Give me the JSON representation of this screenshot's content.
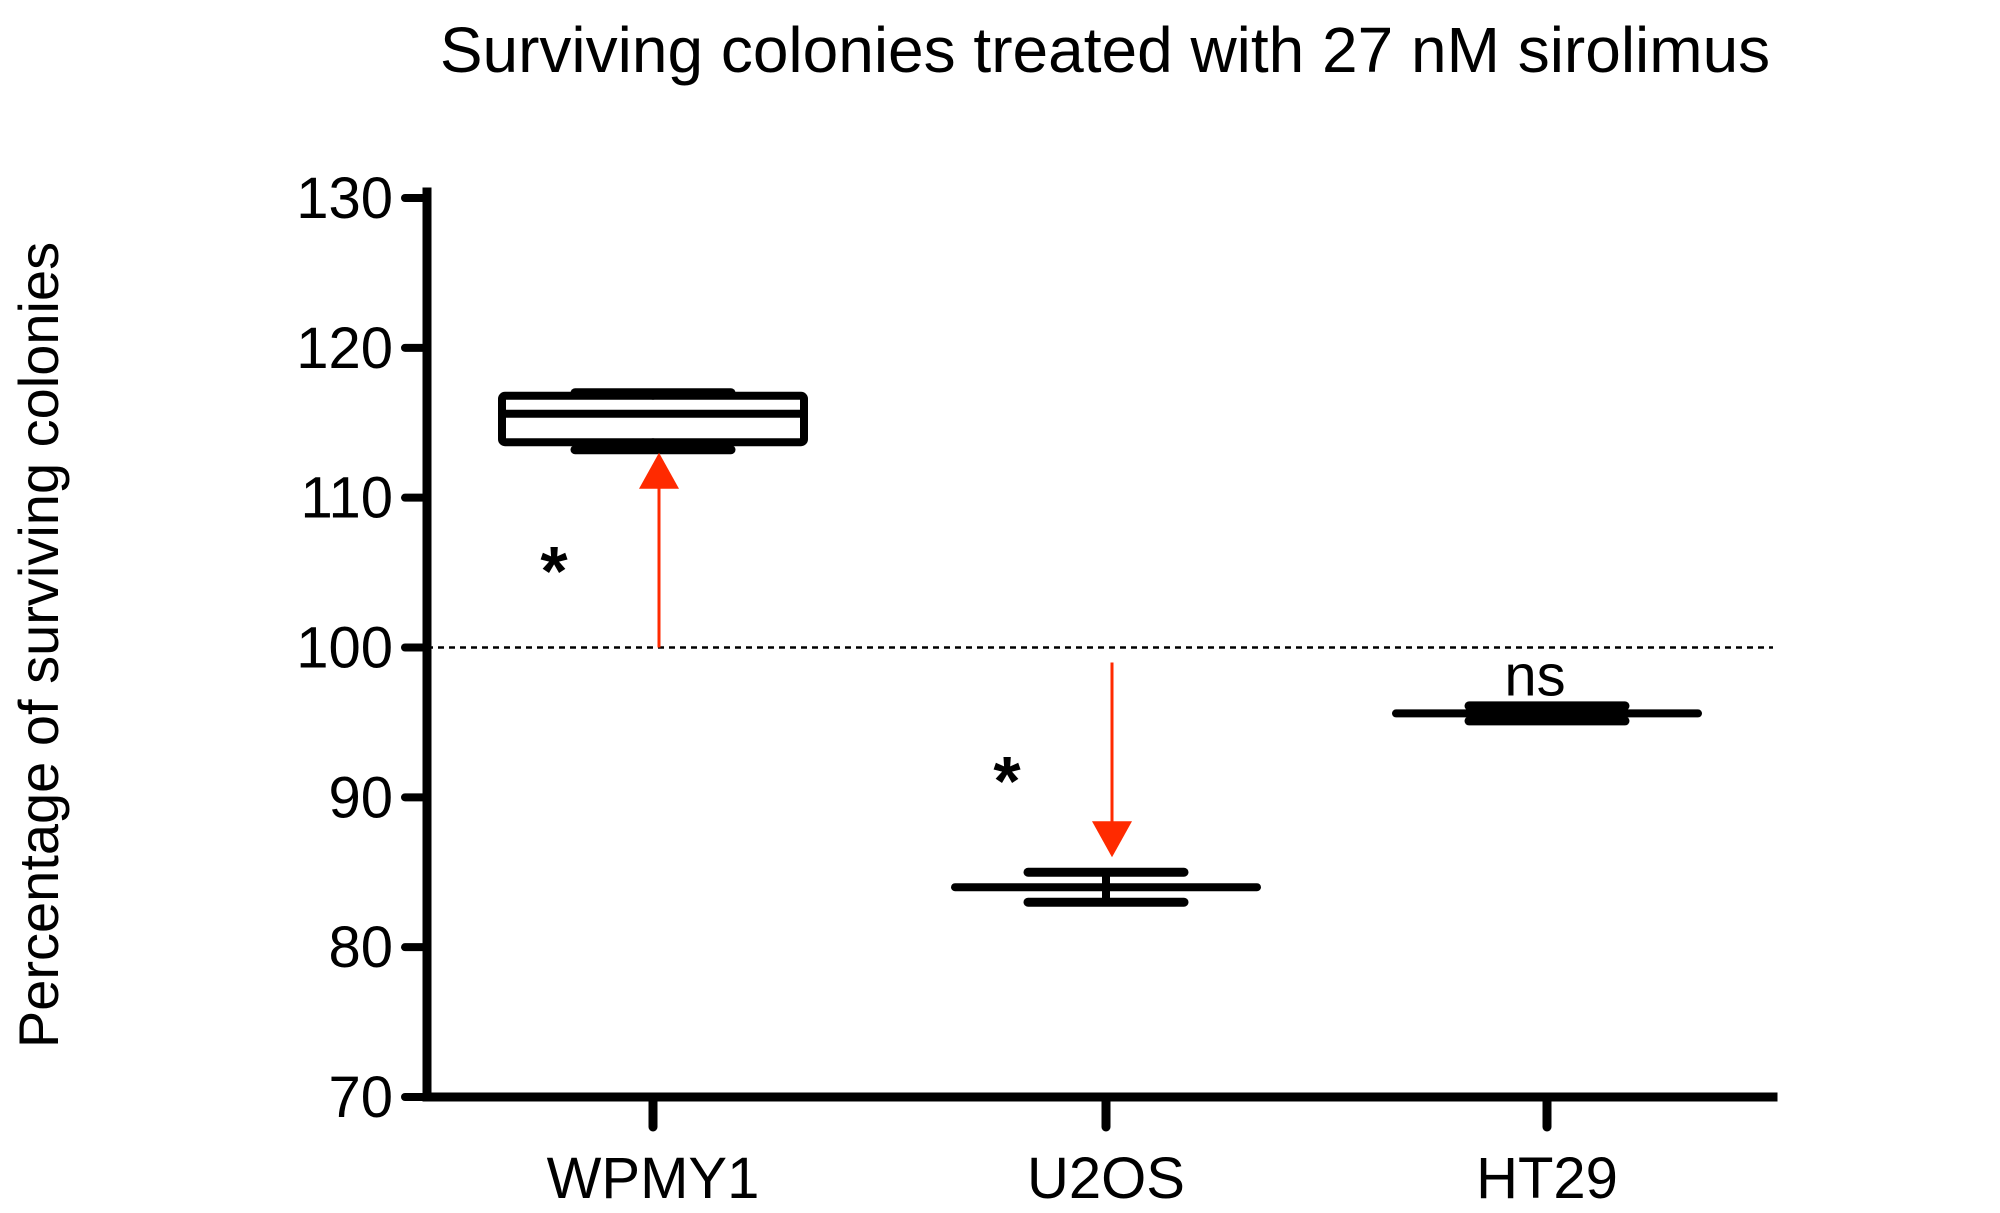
{
  "chart_data": {
    "type": "box",
    "title": "Surviving colonies treated with 27 nM sirolimus",
    "xlabel": "",
    "ylabel": "Percentage of surviving colonies",
    "ylim": [
      70,
      130
    ],
    "yticks": [
      70,
      80,
      90,
      100,
      110,
      120,
      130
    ],
    "categories": [
      "WPMY1",
      "U2OS",
      "HT29"
    ],
    "boxes": [
      {
        "category": "WPMY1",
        "min": 113.2,
        "q1": 113.7,
        "median": 115.6,
        "q3": 116.8,
        "max": 117.0
      },
      {
        "category": "U2OS",
        "min": 83.0,
        "q1": 84.0,
        "median": 84.0,
        "q3": 84.0,
        "max": 85.0
      },
      {
        "category": "HT29",
        "min": 95.1,
        "q1": 95.6,
        "median": 95.6,
        "q3": 95.6,
        "max": 96.1
      }
    ],
    "reference_line": {
      "y": 100,
      "style": "dashed"
    },
    "annotations": [
      {
        "category": "WPMY1",
        "text": "*",
        "arrow_from": 100,
        "arrow_to": 113,
        "arrow_color": "#ff2a00"
      },
      {
        "category": "U2OS",
        "text": "*",
        "arrow_from": 99,
        "arrow_to": 86,
        "arrow_color": "#ff2a00"
      },
      {
        "category": "HT29",
        "text": "ns"
      }
    ],
    "grid": false,
    "legend": "none"
  }
}
